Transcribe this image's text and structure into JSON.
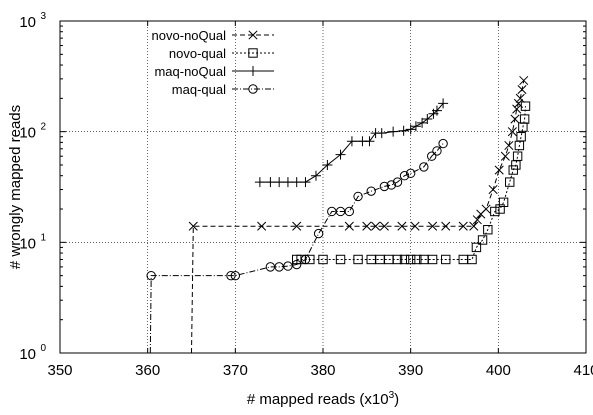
{
  "chart_data": {
    "type": "line",
    "xlabel_main": "# mapped reads (x10",
    "xlabel_sup": "3",
    "xlabel_end": ")",
    "ylabel": "# wrongly mapped reads",
    "xlim": [
      350,
      410
    ],
    "ylim": [
      1,
      1000
    ],
    "yscale": "log",
    "grid": true,
    "legend_position": "top-left",
    "x_ticks": [
      {
        "value": 350,
        "label": "350"
      },
      {
        "value": 360,
        "label": "360"
      },
      {
        "value": 370,
        "label": "370"
      },
      {
        "value": 380,
        "label": "380"
      },
      {
        "value": 390,
        "label": "390"
      },
      {
        "value": 400,
        "label": "400"
      },
      {
        "value": 410,
        "label": "410"
      }
    ],
    "y_ticks": [
      {
        "value": 1,
        "base": "10",
        "exp": "0"
      },
      {
        "value": 10,
        "base": "10",
        "exp": "1"
      },
      {
        "value": 100,
        "base": "10",
        "exp": "2"
      },
      {
        "value": 1000,
        "base": "10",
        "exp": "3"
      }
    ],
    "series": [
      {
        "name": "novo-noQual",
        "marker": "x",
        "dash": "5,3",
        "points": [
          [
            365.0,
            1.0
          ],
          [
            365.2,
            14
          ],
          [
            373,
            14
          ],
          [
            377,
            14
          ],
          [
            383,
            14
          ],
          [
            385,
            14
          ],
          [
            386,
            14
          ],
          [
            387,
            14
          ],
          [
            389,
            14
          ],
          [
            390.5,
            14
          ],
          [
            392.5,
            14
          ],
          [
            394,
            14
          ],
          [
            396,
            14
          ],
          [
            397.2,
            14
          ],
          [
            397.6,
            16
          ],
          [
            398,
            18
          ],
          [
            398.6,
            20
          ],
          [
            399.4,
            30
          ],
          [
            400.1,
            45
          ],
          [
            400.8,
            60
          ],
          [
            401.2,
            75
          ],
          [
            401.6,
            100
          ],
          [
            401.9,
            130
          ],
          [
            402.1,
            160
          ],
          [
            402.3,
            180
          ],
          [
            402.5,
            200
          ],
          [
            402.7,
            240
          ],
          [
            402.9,
            290
          ]
        ]
      },
      {
        "name": "novo-qual",
        "marker": "square",
        "dash": "2,2",
        "points": [
          [
            377,
            7
          ],
          [
            377.5,
            7
          ],
          [
            378.5,
            7
          ],
          [
            380,
            7
          ],
          [
            382,
            7
          ],
          [
            384,
            7
          ],
          [
            385.5,
            7
          ],
          [
            386.5,
            7
          ],
          [
            387.5,
            7
          ],
          [
            388.5,
            7
          ],
          [
            389.3,
            7
          ],
          [
            390,
            7
          ],
          [
            390.7,
            7
          ],
          [
            391.5,
            7
          ],
          [
            392.5,
            7
          ],
          [
            394,
            7
          ],
          [
            396,
            7
          ],
          [
            397,
            7
          ],
          [
            397.5,
            9
          ],
          [
            398.2,
            10.5
          ],
          [
            398.8,
            13
          ],
          [
            399.6,
            19
          ],
          [
            400.2,
            20
          ],
          [
            400.6,
            23
          ],
          [
            401.3,
            35
          ],
          [
            401.7,
            45
          ],
          [
            402,
            50
          ],
          [
            402.2,
            60
          ],
          [
            402.4,
            75
          ],
          [
            402.6,
            90
          ],
          [
            402.8,
            110
          ],
          [
            403,
            130
          ],
          [
            403.1,
            170
          ]
        ]
      },
      {
        "name": "maq-noQual",
        "marker": "plus",
        "dash": "",
        "points": [
          [
            372.8,
            35
          ],
          [
            374,
            35
          ],
          [
            375,
            35
          ],
          [
            376,
            35
          ],
          [
            377,
            35
          ],
          [
            378,
            35
          ],
          [
            379.2,
            40
          ],
          [
            380.5,
            50
          ],
          [
            382,
            62
          ],
          [
            383.3,
            82
          ],
          [
            384.5,
            82
          ],
          [
            385.3,
            82
          ],
          [
            386,
            97
          ],
          [
            386.7,
            97
          ],
          [
            388,
            100
          ],
          [
            389.2,
            102
          ],
          [
            390,
            105
          ],
          [
            390.6,
            112
          ],
          [
            391.3,
            120
          ],
          [
            391.9,
            130
          ],
          [
            392.6,
            145
          ],
          [
            393,
            155
          ],
          [
            393.7,
            180
          ]
        ]
      },
      {
        "name": "maq-qual",
        "marker": "circle",
        "dash": "6,2,1,2",
        "points": [
          [
            360.3,
            1.0
          ],
          [
            360.4,
            5
          ],
          [
            369.5,
            5
          ],
          [
            370,
            5
          ],
          [
            374,
            6
          ],
          [
            375,
            6
          ],
          [
            376,
            6.1
          ],
          [
            377,
            6.3
          ],
          [
            378,
            7
          ],
          [
            379.5,
            12
          ],
          [
            381,
            19
          ],
          [
            382,
            19
          ],
          [
            383,
            19
          ],
          [
            384,
            26
          ],
          [
            385.5,
            29
          ],
          [
            387,
            32
          ],
          [
            387.8,
            33
          ],
          [
            388.5,
            35
          ],
          [
            389.3,
            40
          ],
          [
            390,
            42
          ],
          [
            391.5,
            48
          ],
          [
            392.4,
            60
          ],
          [
            393,
            67
          ],
          [
            393.7,
            78
          ]
        ]
      }
    ]
  }
}
